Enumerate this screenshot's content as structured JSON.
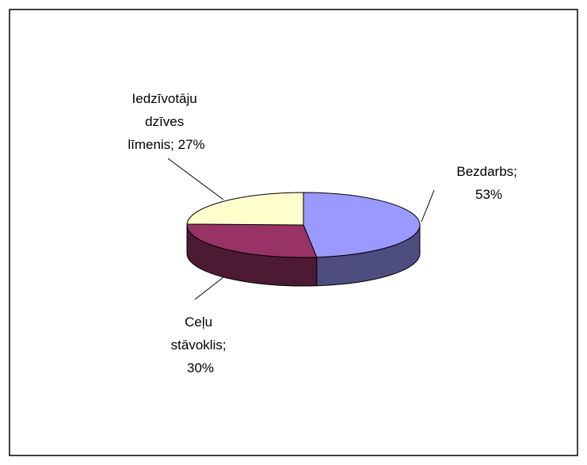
{
  "chart_data": {
    "type": "pie3d",
    "values": [
      53,
      30,
      27
    ],
    "value_labels": [
      "Bezdarbs; 53%",
      "Ceļu stāvoklis; 30%",
      "Iedzīvotāju dzīves līmenis; 27%"
    ],
    "colors": [
      "#9999ff",
      "#993366",
      "#ffffcc"
    ]
  }
}
